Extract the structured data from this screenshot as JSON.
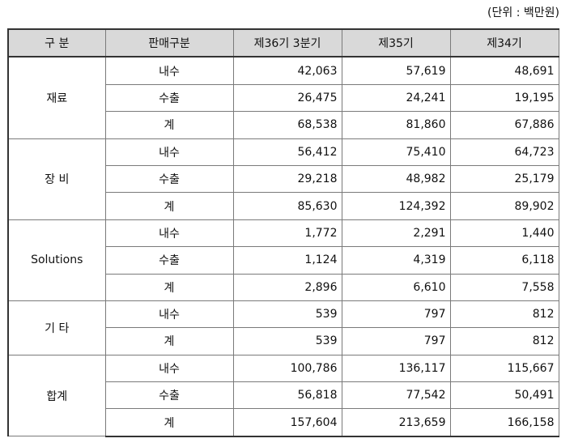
{
  "unit_note": "(단위 : 백만원)",
  "headers": [
    "구 분",
    "판매구분",
    "제36기 3분기",
    "제35기",
    "제34기"
  ],
  "groups": [
    {
      "name": "재료",
      "rows": [
        {
          "label": "내수",
          "values": [
            "42,063",
            "57,619",
            "48,691"
          ]
        },
        {
          "label": "수출",
          "values": [
            "26,475",
            "24,241",
            "19,195"
          ]
        },
        {
          "label": "계",
          "values": [
            "68,538",
            "81,860",
            "67,886"
          ]
        }
      ]
    },
    {
      "name": "장 비",
      "rows": [
        {
          "label": "내수",
          "values": [
            "56,412",
            "75,410",
            "64,723"
          ]
        },
        {
          "label": "수출",
          "values": [
            "29,218",
            "48,982",
            "25,179"
          ]
        },
        {
          "label": "계",
          "values": [
            "85,630",
            "124,392",
            "89,902"
          ]
        }
      ]
    },
    {
      "name": "Solutions",
      "rows": [
        {
          "label": "내수",
          "values": [
            "1,772",
            "2,291",
            "1,440"
          ]
        },
        {
          "label": "수출",
          "values": [
            "1,124",
            "4,319",
            "6,118"
          ]
        },
        {
          "label": "계",
          "values": [
            "2,896",
            "6,610",
            "7,558"
          ]
        }
      ]
    },
    {
      "name": "기 타",
      "rows": [
        {
          "label": "내수",
          "values": [
            "539",
            "797",
            "812"
          ]
        },
        {
          "label": "계",
          "values": [
            "539",
            "797",
            "812"
          ]
        }
      ]
    },
    {
      "name": "합계",
      "rows": [
        {
          "label": "내수",
          "values": [
            "100,786",
            "136,117",
            "115,667"
          ]
        },
        {
          "label": "수출",
          "values": [
            "56,818",
            "77,542",
            "50,491"
          ]
        },
        {
          "label": "계",
          "values": [
            "157,604",
            "213,659",
            "166,158"
          ]
        }
      ]
    }
  ]
}
